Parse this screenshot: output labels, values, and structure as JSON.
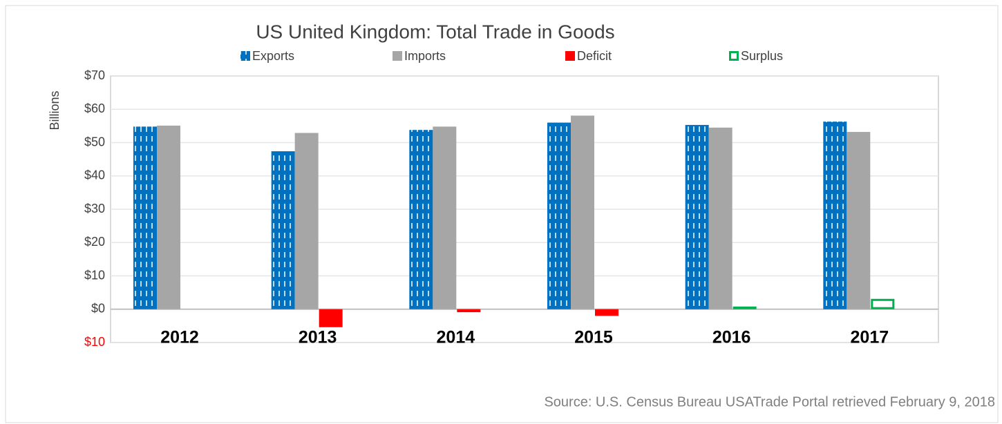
{
  "chart_data": {
    "type": "bar",
    "title": "US United Kingdom: Total Trade in Goods",
    "y_axis_label": "Billions",
    "source": "Source: U.S. Census Bureau USATrade Portal retrieved February 9, 2018",
    "categories": [
      "2012",
      "2013",
      "2014",
      "2015",
      "2016",
      "2017"
    ],
    "series": [
      {
        "name": "Exports",
        "color": "#0070c0",
        "pattern": "dashed-stripes",
        "values": [
          54.8,
          47.4,
          53.8,
          56.0,
          55.3,
          56.3
        ]
      },
      {
        "name": "Imports",
        "color": "#a6a6a6",
        "values": [
          55.1,
          52.9,
          54.8,
          58.1,
          54.5,
          53.2
        ]
      },
      {
        "name": "Deficit",
        "color": "#ff0000",
        "values": [
          null,
          -5.4,
          -0.9,
          -2.0,
          null,
          null
        ]
      },
      {
        "name": "Surplus",
        "color": "#00b050",
        "outline": true,
        "values": [
          null,
          null,
          null,
          null,
          0.8,
          3.1
        ]
      }
    ],
    "ylim": [
      -10,
      70
    ],
    "yticks": [
      {
        "value": -10,
        "label": "$10"
      },
      {
        "value": 0,
        "label": "$0"
      },
      {
        "value": 10,
        "label": "$10"
      },
      {
        "value": 20,
        "label": "$20"
      },
      {
        "value": 30,
        "label": "$30"
      },
      {
        "value": 40,
        "label": "$40"
      },
      {
        "value": 50,
        "label": "$50"
      },
      {
        "value": 60,
        "label": "$60"
      },
      {
        "value": 70,
        "label": "$70"
      }
    ],
    "negative_tick_color": "#ff0000",
    "grid": true
  }
}
